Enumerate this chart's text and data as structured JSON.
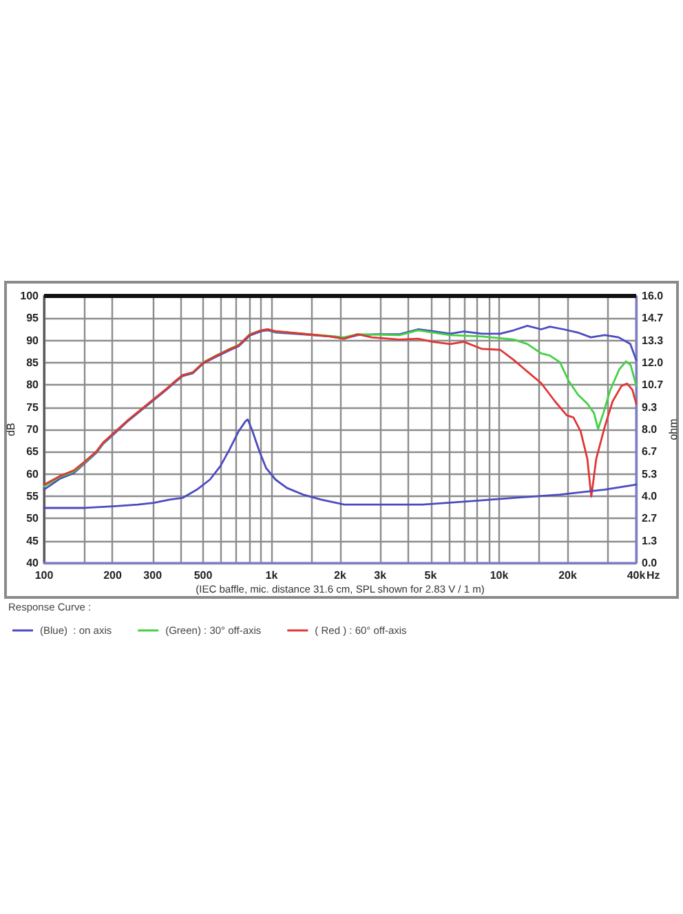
{
  "chart_data": {
    "type": "line",
    "xlabel": "Hz",
    "ylabel": "dB",
    "y2label": "ohm",
    "legend_title": "Response Curve :",
    "annotations": [
      "(IEC baffle, mic. distance 31.6 cm, SPL shown for 2.83 V / 1 m)"
    ],
    "log": "x",
    "grid": true,
    "legend": "bottom left",
    "xlim": [
      100,
      40000
    ],
    "xticks": [
      100,
      {
        "value": 150,
        "label": null
      },
      200,
      300,
      {
        "value": 400,
        "label": null
      },
      500,
      {
        "value": 600,
        "label": null
      },
      {
        "value": 700,
        "label": null
      },
      {
        "value": 800,
        "label": null
      },
      {
        "value": 900,
        "label": null
      },
      {
        "value": 1000,
        "label": "1k"
      },
      {
        "value": 1500,
        "label": null
      },
      {
        "value": 2000,
        "label": "2k"
      },
      {
        "value": 3000,
        "label": "3k"
      },
      {
        "value": 4000,
        "label": null
      },
      {
        "value": 5000,
        "label": "5k"
      },
      {
        "value": 6000,
        "label": null
      },
      {
        "value": 7000,
        "label": null
      },
      {
        "value": 8000,
        "label": null
      },
      {
        "value": 9000,
        "label": null
      },
      {
        "value": 10000,
        "label": "10k"
      },
      {
        "value": 15000,
        "label": null
      },
      {
        "value": 20000,
        "label": "20k"
      },
      {
        "value": 30000,
        "label": null
      },
      {
        "value": 40000,
        "label": "40k"
      }
    ],
    "ylim": [
      40,
      100
    ],
    "yticks": [
      40,
      45,
      50,
      55,
      60,
      65,
      70,
      75,
      80,
      85,
      90,
      95,
      100
    ],
    "y2lim": [
      0,
      16
    ],
    "y2ticks": [
      {
        "value": 0,
        "label": "0.0"
      },
      {
        "value": 1.333,
        "label": "1.3"
      },
      {
        "value": 2.667,
        "label": "2.7"
      },
      {
        "value": 4,
        "label": "4.0"
      },
      {
        "value": 5.333,
        "label": "5.3"
      },
      {
        "value": 6.667,
        "label": "6.7"
      },
      {
        "value": 8,
        "label": "8.0"
      },
      {
        "value": 9.333,
        "label": "9.3"
      },
      {
        "value": 10.667,
        "label": "10.7"
      },
      {
        "value": 12,
        "label": "12.0"
      },
      {
        "value": 13.333,
        "label": "13.3"
      },
      {
        "value": 14.667,
        "label": "14.7"
      },
      {
        "value": 16,
        "label": "16.0"
      }
    ],
    "series": [
      {
        "name": "(Blue)  : on axis",
        "color": "#4b4bc0",
        "x": [
          100,
          117,
          135,
          151,
          170,
          182,
          202,
          235,
          270,
          303,
          341,
          374,
          406,
          450,
          502,
          569,
          653,
          717,
          802,
          902,
          965,
          1040,
          1250,
          1510,
          1810,
          2080,
          2390,
          2890,
          3650,
          4400,
          5100,
          6090,
          7000,
          8400,
          10100,
          11600,
          13300,
          15300,
          16700,
          19200,
          22100,
          25300,
          29100,
          33500,
          37700,
          40000
        ],
        "values": [
          56.5,
          58.9,
          60.2,
          62.4,
          64.8,
          66.8,
          68.9,
          72.0,
          74.5,
          76.6,
          78.7,
          80.5,
          82.0,
          82.6,
          84.9,
          86.3,
          87.8,
          88.7,
          91.1,
          92.1,
          92.3,
          91.8,
          91.5,
          91.2,
          90.9,
          90.4,
          91.2,
          91.4,
          91.4,
          92.5,
          92.1,
          91.5,
          92.0,
          91.5,
          91.5,
          92.3,
          93.3,
          92.5,
          93.1,
          92.5,
          91.8,
          90.7,
          91.2,
          90.7,
          89.2,
          85.6
        ]
      },
      {
        "name": "(Green) : 30° off-axis",
        "color": "#44d044",
        "x": [
          100,
          117,
          135,
          151,
          170,
          182,
          202,
          235,
          270,
          303,
          341,
          374,
          406,
          450,
          502,
          569,
          653,
          717,
          802,
          902,
          965,
          1040,
          1250,
          1510,
          1810,
          2080,
          2390,
          3650,
          4400,
          6090,
          8400,
          10100,
          11600,
          13300,
          15300,
          16700,
          18500,
          20200,
          22200,
          24400,
          26100,
          27200,
          28700,
          30800,
          33700,
          36100,
          37800,
          40000
        ],
        "values": [
          57.2,
          59.3,
          60.5,
          62.6,
          65.0,
          67.0,
          69.1,
          72.2,
          74.7,
          76.8,
          78.9,
          80.7,
          82.2,
          82.8,
          85.1,
          86.6,
          88.1,
          89.0,
          91.4,
          92.3,
          92.5,
          92.0,
          91.7,
          91.3,
          91.0,
          90.7,
          91.4,
          91.2,
          92.3,
          91.2,
          90.9,
          90.5,
          90.2,
          89.2,
          87.1,
          86.6,
          85.1,
          80.9,
          77.8,
          75.8,
          73.7,
          70.1,
          73.7,
          78.9,
          83.5,
          85.3,
          84.5,
          79.9
        ]
      },
      {
        "name": "( Red ) : 60° off-axis",
        "color": "#e03535",
        "x": [
          100,
          117,
          135,
          151,
          170,
          182,
          202,
          235,
          270,
          303,
          341,
          374,
          406,
          450,
          502,
          569,
          653,
          717,
          802,
          902,
          965,
          1040,
          1250,
          1510,
          1810,
          2080,
          2390,
          2750,
          3650,
          4400,
          5100,
          6090,
          7000,
          8400,
          10100,
          11600,
          13300,
          15300,
          17600,
          19800,
          21200,
          22800,
          24400,
          25400,
          26700,
          29100,
          31500,
          34500,
          36500,
          38500,
          40000
        ],
        "values": [
          57.6,
          59.5,
          60.8,
          62.8,
          65.1,
          67.1,
          69.2,
          72.2,
          74.7,
          76.8,
          78.9,
          80.7,
          82.2,
          82.8,
          85.0,
          86.5,
          88.0,
          88.9,
          91.3,
          92.3,
          92.5,
          92.1,
          91.7,
          91.3,
          90.9,
          90.4,
          91.4,
          90.7,
          90.2,
          90.4,
          89.7,
          89.2,
          89.7,
          88.1,
          87.9,
          85.6,
          83.0,
          80.4,
          76.3,
          73.2,
          72.7,
          69.6,
          63.4,
          54.9,
          63.4,
          70.6,
          76.3,
          79.8,
          80.3,
          78.9,
          75.8
        ]
      },
      {
        "color": "#4b4bc0",
        "axis": "y2",
        "x": [
          100,
          151,
          202,
          258,
          303,
          357,
          406,
          470,
          536,
          595,
          653,
          717,
          768,
          786,
          824,
          883,
          945,
          1040,
          1166,
          1373,
          1650,
          2085,
          2890,
          4610,
          7350,
          11600,
          18500,
          29100,
          40000
        ],
        "values": [
          3.3,
          3.3,
          3.4,
          3.5,
          3.6,
          3.8,
          3.9,
          4.4,
          5.0,
          5.8,
          6.8,
          7.9,
          8.5,
          8.6,
          7.9,
          6.7,
          5.7,
          5.0,
          4.5,
          4.1,
          3.8,
          3.5,
          3.5,
          3.5,
          3.7,
          3.9,
          4.1,
          4.4,
          4.7
        ]
      }
    ]
  }
}
